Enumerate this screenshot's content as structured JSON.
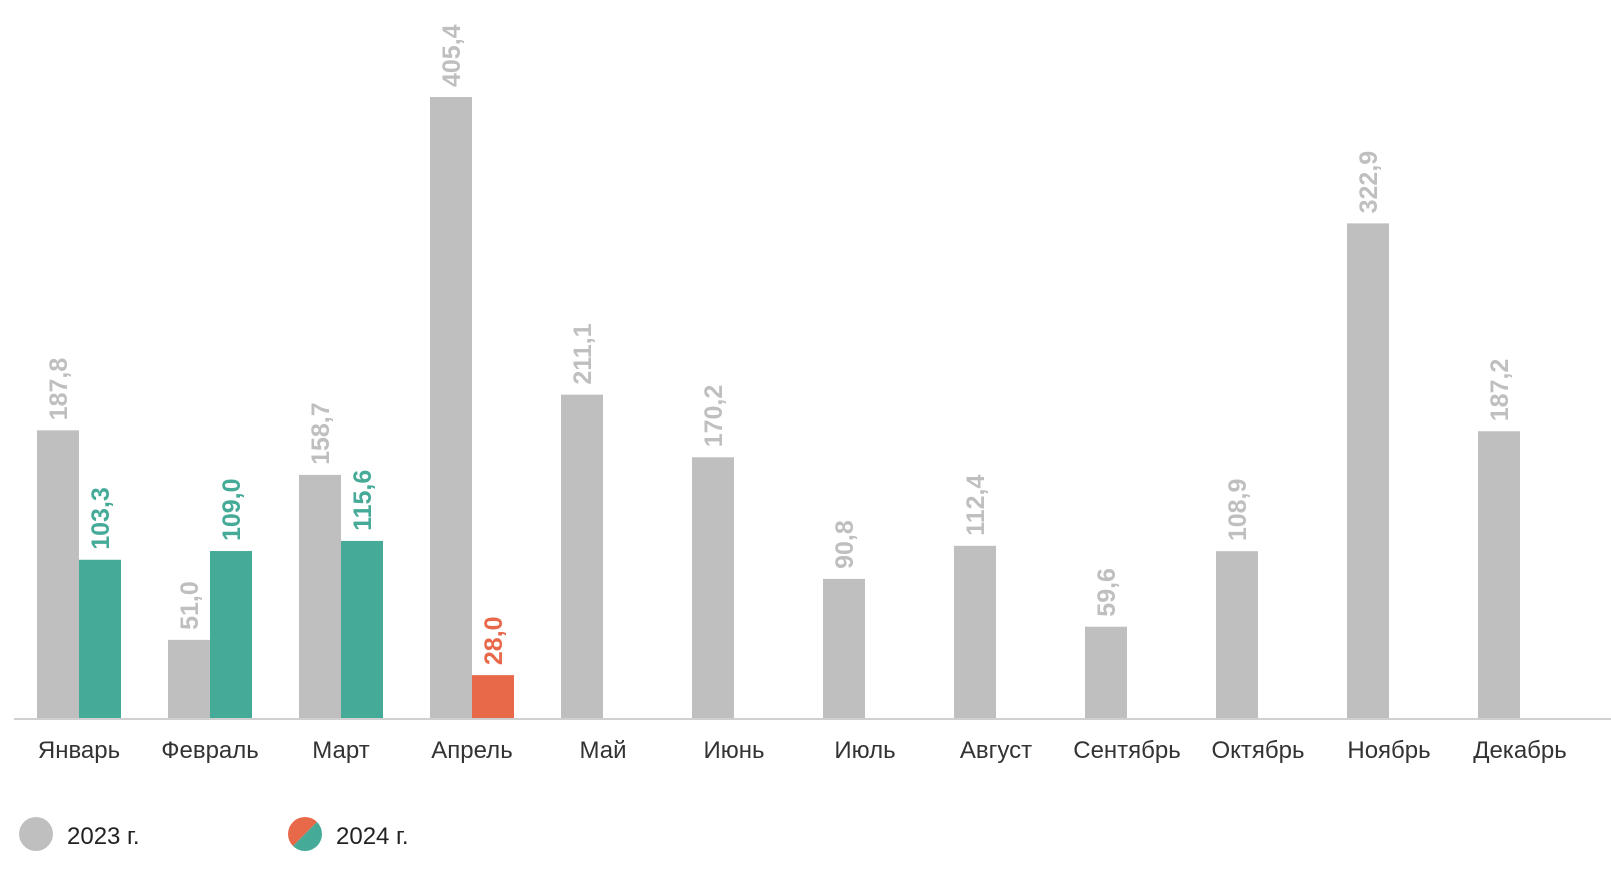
{
  "chart_data": {
    "type": "bar",
    "categories": [
      "Январь",
      "Февраль",
      "Март",
      "Апрель",
      "Май",
      "Июнь",
      "Июль",
      "Август",
      "Сентябрь",
      "Октябрь",
      "Ноябрь",
      "Декабрь"
    ],
    "series": [
      {
        "name": "2023 г.",
        "values": [
          187.8,
          51.0,
          158.7,
          405.4,
          211.1,
          170.2,
          90.8,
          112.4,
          59.6,
          108.9,
          322.9,
          187.2
        ],
        "labels": [
          "187,8",
          "51,0",
          "158,7",
          "405,4",
          "211,1",
          "170,2",
          "90,8",
          "112,4",
          "59,6",
          "108,9",
          "322,9",
          "187,2"
        ],
        "color": "#bfbfbf"
      },
      {
        "name": "2024 г.",
        "values": [
          103.3,
          109.0,
          115.6,
          28.0,
          null,
          null,
          null,
          null,
          null,
          null,
          null,
          null
        ],
        "labels": [
          "103,3",
          "109,0",
          "115,6",
          "28,0",
          "",
          "",
          "",
          "",
          "",
          "",
          "",
          ""
        ],
        "colors": [
          "#45aa97",
          "#45aa97",
          "#45aa97",
          "#e8694a"
        ]
      }
    ],
    "ylim": [
      0,
      405.4
    ],
    "grid": false,
    "legend_position": "bottom-left",
    "data_label_orientation": "vertical"
  },
  "legend": [
    {
      "label": "2023 г.",
      "icon": "gray-circle-icon",
      "colors": [
        "#bfbfbf"
      ]
    },
    {
      "label": "2024 г.",
      "icon": "split-circle-icon",
      "colors": [
        "#e8694a",
        "#45aa97"
      ]
    }
  ]
}
